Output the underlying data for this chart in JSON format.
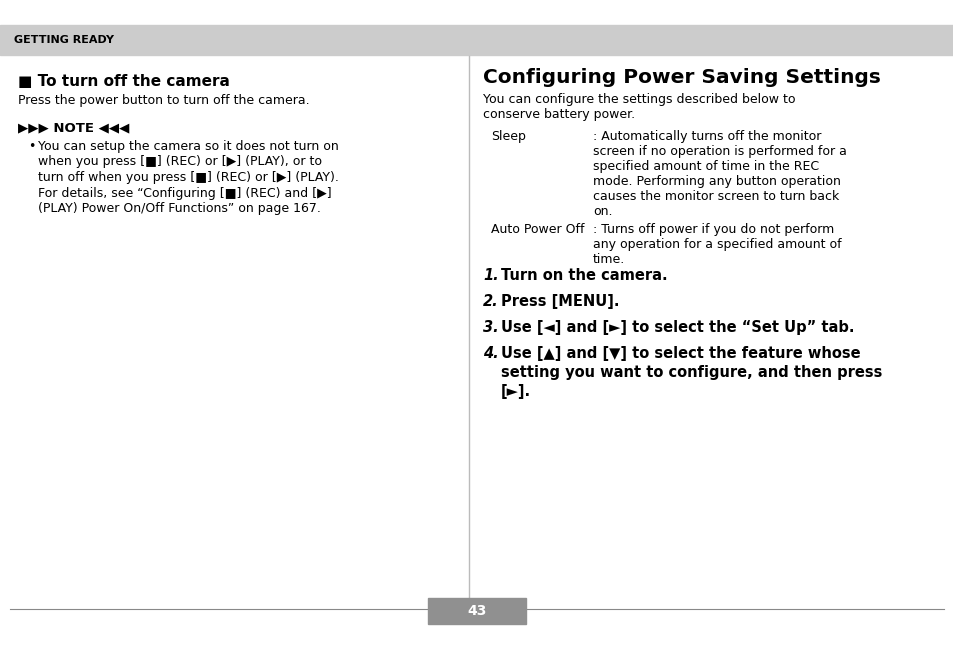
{
  "bg_color": "#ffffff",
  "header_bg": "#cccccc",
  "header_text": "GETTING READY",
  "header_text_color": "#000000",
  "page_number": "43",
  "page_num_bg": "#909090",
  "left_col": {
    "section_title": "■ To turn off the camera",
    "section_body": "Press the power button to turn off the camera.",
    "note_header": "▶▶▶ NOTE ◀◀◀",
    "note_lines": [
      "You can setup the camera so it does not turn on",
      "when you press [■] (REC) or [▶] (PLAY), or to",
      "turn off when you press [■] (REC) or [▶] (PLAY).",
      "For details, see “Configuring [■] (REC) and [▶]",
      "(PLAY) Power On/Off Functions” on page 167."
    ]
  },
  "right_col": {
    "title": "Configuring Power Saving Settings",
    "intro_lines": [
      "You can configure the settings described below to",
      "conserve battery power."
    ],
    "sleep_label": "Sleep",
    "sleep_lines": [
      ": Automatically turns off the monitor",
      "screen if no operation is performed for a",
      "specified amount of time in the REC",
      "mode. Performing any button operation",
      "causes the monitor screen to turn back",
      "on."
    ],
    "auto_label": "Auto Power Off",
    "auto_lines": [
      ": Turns off power if you do not perform",
      "any operation for a specified amount of",
      "time."
    ],
    "step1_num": "1.",
    "step1_text": "Turn on the camera.",
    "step2_num": "2.",
    "step2_text": "Press [MENU].",
    "step3_num": "3.",
    "step3_text": "Use [◄] and [►] to select the “Set Up” tab.",
    "step4_num": "4.",
    "step4_lines": [
      "Use [▲] and [▼] to select the feature whose",
      "setting you want to configure, and then press",
      "[►]."
    ]
  }
}
